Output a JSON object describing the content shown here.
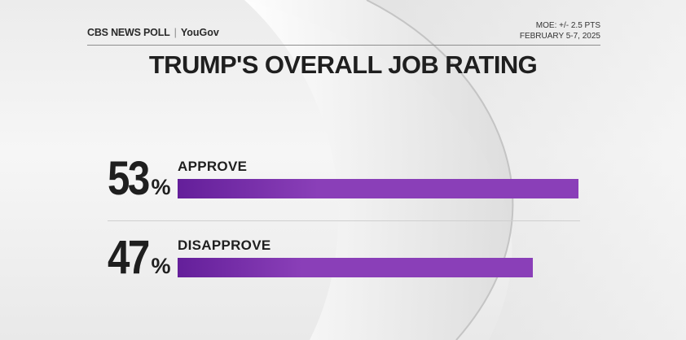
{
  "header": {
    "brand_primary": "CBS NEWS POLL",
    "brand_separator": "|",
    "brand_partner": "YouGov",
    "moe": "MOE: +/- 2.5 PTS",
    "dates": "FEBRUARY 5-7, 2025"
  },
  "chart_data": {
    "type": "bar",
    "orientation": "horizontal",
    "title": "TRUMP'S OVERALL JOB RATING",
    "categories": [
      "APPROVE",
      "DISAPPROVE"
    ],
    "values": [
      53,
      47
    ],
    "display_values": [
      "53",
      "47"
    ],
    "value_suffix": "%",
    "xlim": [
      0,
      100
    ],
    "grid": false,
    "legend": "none",
    "bar_color": "#8a3fb8",
    "bar_color_start": "#641f9a"
  }
}
